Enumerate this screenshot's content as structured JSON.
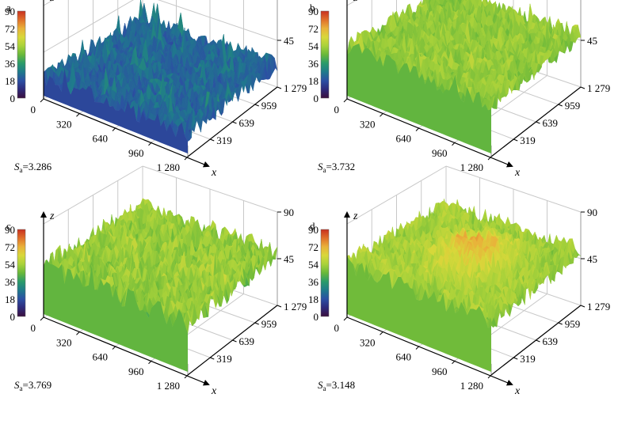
{
  "figure": {
    "colorscale": [
      "#3b0f3e",
      "#2e2a7a",
      "#2c4fa3",
      "#1f7a8c",
      "#2a9a6a",
      "#69b83a",
      "#a9d23a",
      "#d8d83a",
      "#e9b23a",
      "#e0702a",
      "#c83020"
    ]
  },
  "chart_data": [
    {
      "type": "surface",
      "panel": "a",
      "title": "",
      "xlabel": "x",
      "ylabel": "",
      "zlabel": "z",
      "x_ticks": [
        "0",
        "320",
        "640",
        "960",
        "1 280"
      ],
      "y_ticks": [
        "319",
        "639",
        "959",
        "1 279"
      ],
      "z_ticks": [
        "45",
        "90"
      ],
      "colorbar_ticks": [
        "90",
        "72",
        "54",
        "36",
        "18",
        "0"
      ],
      "xlim": [
        0,
        1280
      ],
      "ylim": [
        0,
        1279
      ],
      "zlim": [
        0,
        90
      ],
      "sa_symbol": "S",
      "sa_sub": "a",
      "sa_value": "=3.286",
      "surface": {
        "base_level": 22,
        "roughness": 9,
        "peak_level": 36,
        "peak_density": 0.02
      }
    },
    {
      "type": "surface",
      "panel": "b",
      "title": "",
      "xlabel": "x",
      "ylabel": "",
      "zlabel": "z",
      "x_ticks": [
        "0",
        "320",
        "640",
        "960",
        "1 280"
      ],
      "y_ticks": [
        "319",
        "639",
        "959",
        "1 279"
      ],
      "z_ticks": [
        "45",
        "90"
      ],
      "colorbar_ticks": [
        "90",
        "72",
        "54",
        "36",
        "18",
        "0"
      ],
      "xlim": [
        0,
        1280
      ],
      "ylim": [
        0,
        1279
      ],
      "zlim": [
        0,
        90
      ],
      "sa_symbol": "S",
      "sa_sub": "a",
      "sa_value": "=3.732",
      "surface": {
        "base_level": 50,
        "roughness": 9,
        "peak_level": 62,
        "peak_density": 0.01
      }
    },
    {
      "type": "surface",
      "panel": "c",
      "title": "",
      "xlabel": "x",
      "ylabel": "",
      "zlabel": "z",
      "x_ticks": [
        "0",
        "320",
        "640",
        "960",
        "1 280"
      ],
      "y_ticks": [
        "319",
        "639",
        "959",
        "1 279"
      ],
      "z_ticks": [
        "45",
        "90"
      ],
      "colorbar_ticks": [
        "90",
        "72",
        "54",
        "36",
        "18",
        "0"
      ],
      "xlim": [
        0,
        1280
      ],
      "ylim": [
        0,
        1279
      ],
      "zlim": [
        0,
        90
      ],
      "sa_symbol": "S",
      "sa_sub": "a",
      "sa_value": "=3.769",
      "surface": {
        "base_level": 50,
        "roughness": 11,
        "peak_level": 62,
        "peak_density": 0.01
      }
    },
    {
      "type": "surface",
      "panel": "d",
      "title": "",
      "xlabel": "x",
      "ylabel": "",
      "zlabel": "z",
      "x_ticks": [
        "0",
        "320",
        "640",
        "960",
        "1 280"
      ],
      "y_ticks": [
        "319",
        "639",
        "959",
        "1 279"
      ],
      "z_ticks": [
        "45",
        "90"
      ],
      "colorbar_ticks": [
        "90",
        "72",
        "54",
        "36",
        "18",
        "0"
      ],
      "xlim": [
        0,
        1280
      ],
      "ylim": [
        0,
        1279
      ],
      "zlim": [
        0,
        90
      ],
      "sa_symbol": "S",
      "sa_sub": "a",
      "sa_value": "=3.148",
      "surface": {
        "base_level": 52,
        "roughness": 10,
        "peak_level": 70,
        "peak_density": 0.0
      }
    }
  ]
}
